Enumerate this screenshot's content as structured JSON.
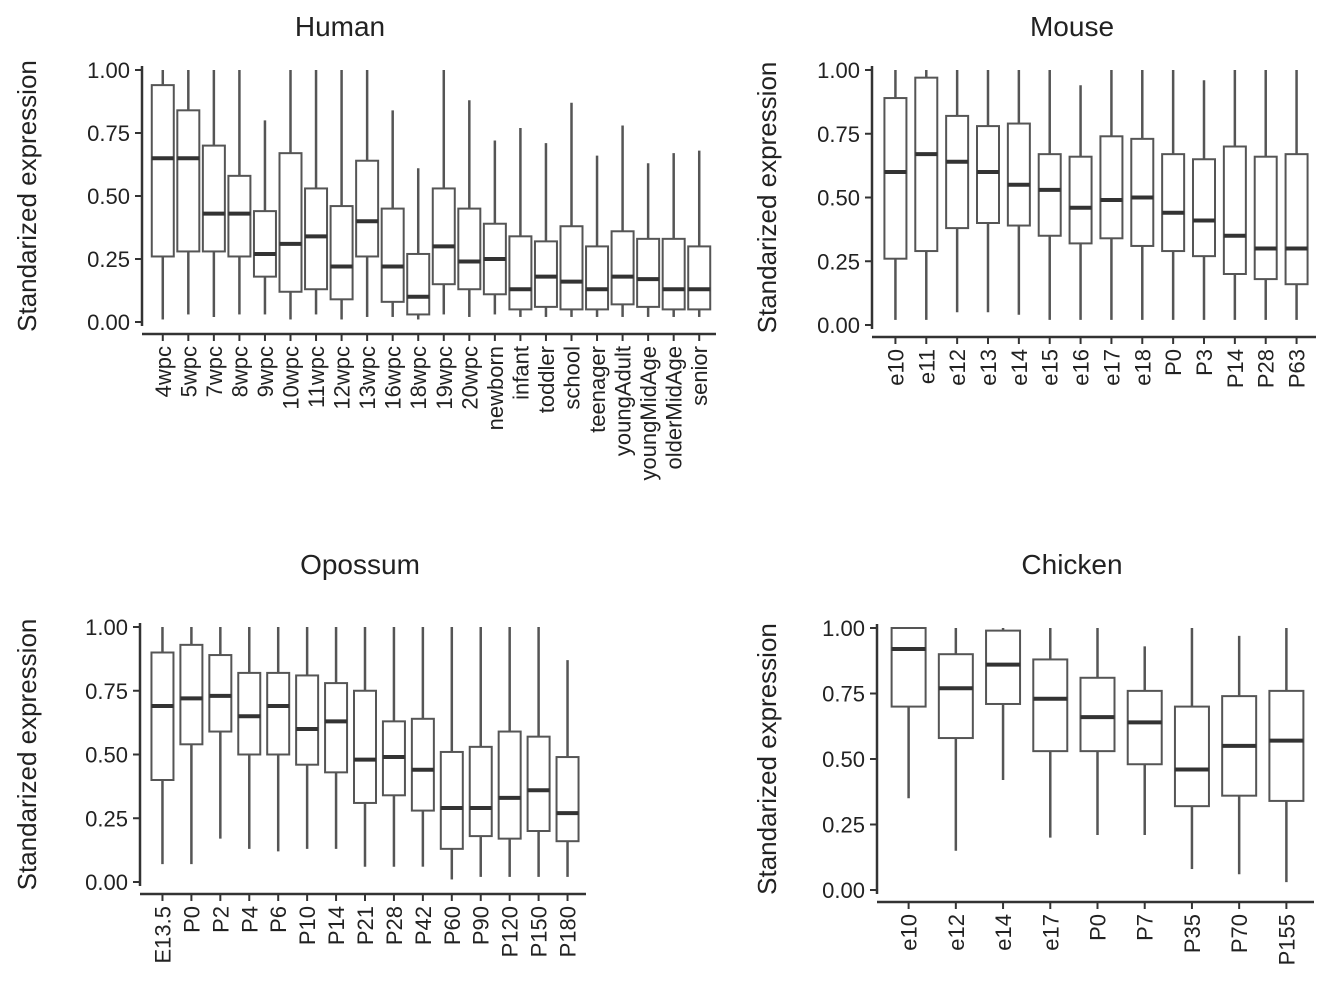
{
  "chart_data": [
    {
      "type": "boxplot",
      "title": "Human",
      "ylabel": "Standarized expression",
      "ylim": [
        0,
        1
      ],
      "yticks": [
        "0.00",
        "0.25",
        "0.50",
        "0.75",
        "1.00"
      ],
      "categories": [
        "4wpc",
        "5wpc",
        "7wpc",
        "8wpc",
        "9wpc",
        "10wpc",
        "11wpc",
        "12wpc",
        "13wpc",
        "16wpc",
        "18wpc",
        "19wpc",
        "20wpc",
        "newborn",
        "infant",
        "toddler",
        "school",
        "teenager",
        "youngAdult",
        "youngMidAge",
        "olderMidAge",
        "senior"
      ],
      "boxes": [
        {
          "min": 0.01,
          "q1": 0.26,
          "median": 0.65,
          "q3": 0.94,
          "max": 1.0
        },
        {
          "min": 0.03,
          "q1": 0.28,
          "median": 0.65,
          "q3": 0.84,
          "max": 1.0
        },
        {
          "min": 0.02,
          "q1": 0.28,
          "median": 0.43,
          "q3": 0.7,
          "max": 1.0
        },
        {
          "min": 0.03,
          "q1": 0.26,
          "median": 0.43,
          "q3": 0.58,
          "max": 1.0
        },
        {
          "min": 0.03,
          "q1": 0.18,
          "median": 0.27,
          "q3": 0.44,
          "max": 0.8
        },
        {
          "min": 0.01,
          "q1": 0.12,
          "median": 0.31,
          "q3": 0.67,
          "max": 1.0
        },
        {
          "min": 0.03,
          "q1": 0.13,
          "median": 0.34,
          "q3": 0.53,
          "max": 1.0
        },
        {
          "min": 0.01,
          "q1": 0.09,
          "median": 0.22,
          "q3": 0.46,
          "max": 1.0
        },
        {
          "min": 0.02,
          "q1": 0.26,
          "median": 0.4,
          "q3": 0.64,
          "max": 1.0
        },
        {
          "min": 0.02,
          "q1": 0.08,
          "median": 0.22,
          "q3": 0.45,
          "max": 0.84
        },
        {
          "min": 0.01,
          "q1": 0.03,
          "median": 0.1,
          "q3": 0.27,
          "max": 0.61
        },
        {
          "min": 0.03,
          "q1": 0.15,
          "median": 0.3,
          "q3": 0.53,
          "max": 1.0
        },
        {
          "min": 0.02,
          "q1": 0.13,
          "median": 0.24,
          "q3": 0.45,
          "max": 0.88
        },
        {
          "min": 0.03,
          "q1": 0.11,
          "median": 0.25,
          "q3": 0.39,
          "max": 0.72
        },
        {
          "min": 0.02,
          "q1": 0.05,
          "median": 0.13,
          "q3": 0.34,
          "max": 0.77
        },
        {
          "min": 0.02,
          "q1": 0.06,
          "median": 0.18,
          "q3": 0.32,
          "max": 0.71
        },
        {
          "min": 0.02,
          "q1": 0.05,
          "median": 0.16,
          "q3": 0.38,
          "max": 0.87
        },
        {
          "min": 0.02,
          "q1": 0.05,
          "median": 0.13,
          "q3": 0.3,
          "max": 0.66
        },
        {
          "min": 0.02,
          "q1": 0.07,
          "median": 0.18,
          "q3": 0.36,
          "max": 0.78
        },
        {
          "min": 0.02,
          "q1": 0.06,
          "median": 0.17,
          "q3": 0.33,
          "max": 0.63
        },
        {
          "min": 0.02,
          "q1": 0.05,
          "median": 0.13,
          "q3": 0.33,
          "max": 0.67
        },
        {
          "min": 0.02,
          "q1": 0.05,
          "median": 0.13,
          "q3": 0.3,
          "max": 0.68
        }
      ]
    },
    {
      "type": "boxplot",
      "title": "Mouse",
      "ylabel": "Standarized expression",
      "ylim": [
        0,
        1
      ],
      "yticks": [
        "0.00",
        "0.25",
        "0.50",
        "0.75",
        "1.00"
      ],
      "categories": [
        "e10",
        "e11",
        "e12",
        "e13",
        "e14",
        "e15",
        "e16",
        "e17",
        "e18",
        "P0",
        "P3",
        "P14",
        "P28",
        "P63"
      ],
      "boxes": [
        {
          "min": 0.02,
          "q1": 0.26,
          "median": 0.6,
          "q3": 0.89,
          "max": 1.0
        },
        {
          "min": 0.02,
          "q1": 0.29,
          "median": 0.67,
          "q3": 0.97,
          "max": 1.0
        },
        {
          "min": 0.05,
          "q1": 0.38,
          "median": 0.64,
          "q3": 0.82,
          "max": 1.0
        },
        {
          "min": 0.05,
          "q1": 0.4,
          "median": 0.6,
          "q3": 0.78,
          "max": 1.0
        },
        {
          "min": 0.04,
          "q1": 0.39,
          "median": 0.55,
          "q3": 0.79,
          "max": 1.0
        },
        {
          "min": 0.02,
          "q1": 0.35,
          "median": 0.53,
          "q3": 0.67,
          "max": 1.0
        },
        {
          "min": 0.02,
          "q1": 0.32,
          "median": 0.46,
          "q3": 0.66,
          "max": 0.94
        },
        {
          "min": 0.02,
          "q1": 0.34,
          "median": 0.49,
          "q3": 0.74,
          "max": 1.0
        },
        {
          "min": 0.02,
          "q1": 0.31,
          "median": 0.5,
          "q3": 0.73,
          "max": 1.0
        },
        {
          "min": 0.02,
          "q1": 0.29,
          "median": 0.44,
          "q3": 0.67,
          "max": 1.0
        },
        {
          "min": 0.02,
          "q1": 0.27,
          "median": 0.41,
          "q3": 0.65,
          "max": 0.96
        },
        {
          "min": 0.02,
          "q1": 0.2,
          "median": 0.35,
          "q3": 0.7,
          "max": 1.0
        },
        {
          "min": 0.02,
          "q1": 0.18,
          "median": 0.3,
          "q3": 0.66,
          "max": 1.0
        },
        {
          "min": 0.02,
          "q1": 0.16,
          "median": 0.3,
          "q3": 0.67,
          "max": 1.0
        }
      ]
    },
    {
      "type": "boxplot",
      "title": "Opossum",
      "ylabel": "Standarized expression",
      "ylim": [
        0,
        1
      ],
      "yticks": [
        "0.00",
        "0.25",
        "0.50",
        "0.75",
        "1.00"
      ],
      "categories": [
        "E13.5",
        "P0",
        "P2",
        "P4",
        "P6",
        "P10",
        "P14",
        "P21",
        "P28",
        "P42",
        "P60",
        "P90",
        "P120",
        "P150",
        "P180"
      ],
      "boxes": [
        {
          "min": 0.07,
          "q1": 0.4,
          "median": 0.69,
          "q3": 0.9,
          "max": 1.0
        },
        {
          "min": 0.07,
          "q1": 0.54,
          "median": 0.72,
          "q3": 0.93,
          "max": 1.0
        },
        {
          "min": 0.17,
          "q1": 0.59,
          "median": 0.73,
          "q3": 0.89,
          "max": 1.0
        },
        {
          "min": 0.13,
          "q1": 0.5,
          "median": 0.65,
          "q3": 0.82,
          "max": 1.0
        },
        {
          "min": 0.12,
          "q1": 0.5,
          "median": 0.69,
          "q3": 0.82,
          "max": 1.0
        },
        {
          "min": 0.13,
          "q1": 0.46,
          "median": 0.6,
          "q3": 0.81,
          "max": 1.0
        },
        {
          "min": 0.13,
          "q1": 0.43,
          "median": 0.63,
          "q3": 0.78,
          "max": 1.0
        },
        {
          "min": 0.06,
          "q1": 0.31,
          "median": 0.48,
          "q3": 0.75,
          "max": 1.0
        },
        {
          "min": 0.06,
          "q1": 0.34,
          "median": 0.49,
          "q3": 0.63,
          "max": 1.0
        },
        {
          "min": 0.06,
          "q1": 0.28,
          "median": 0.44,
          "q3": 0.64,
          "max": 1.0
        },
        {
          "min": 0.01,
          "q1": 0.13,
          "median": 0.29,
          "q3": 0.51,
          "max": 1.0
        },
        {
          "min": 0.02,
          "q1": 0.18,
          "median": 0.29,
          "q3": 0.53,
          "max": 1.0
        },
        {
          "min": 0.02,
          "q1": 0.17,
          "median": 0.33,
          "q3": 0.59,
          "max": 1.0
        },
        {
          "min": 0.02,
          "q1": 0.2,
          "median": 0.36,
          "q3": 0.57,
          "max": 1.0
        },
        {
          "min": 0.02,
          "q1": 0.16,
          "median": 0.27,
          "q3": 0.49,
          "max": 0.87
        }
      ]
    },
    {
      "type": "boxplot",
      "title": "Chicken",
      "ylabel": "Standarized expression",
      "ylim": [
        0,
        1
      ],
      "yticks": [
        "0.00",
        "0.25",
        "0.50",
        "0.75",
        "1.00"
      ],
      "categories": [
        "e10",
        "e12",
        "e14",
        "e17",
        "P0",
        "P7",
        "P35",
        "P70",
        "P155"
      ],
      "boxes": [
        {
          "min": 0.35,
          "q1": 0.7,
          "median": 0.92,
          "q3": 1.0,
          "max": 1.0
        },
        {
          "min": 0.15,
          "q1": 0.58,
          "median": 0.77,
          "q3": 0.9,
          "max": 1.0
        },
        {
          "min": 0.42,
          "q1": 0.71,
          "median": 0.86,
          "q3": 0.99,
          "max": 1.0
        },
        {
          "min": 0.2,
          "q1": 0.53,
          "median": 0.73,
          "q3": 0.88,
          "max": 1.0
        },
        {
          "min": 0.21,
          "q1": 0.53,
          "median": 0.66,
          "q3": 0.81,
          "max": 1.0
        },
        {
          "min": 0.21,
          "q1": 0.48,
          "median": 0.64,
          "q3": 0.76,
          "max": 0.93
        },
        {
          "min": 0.08,
          "q1": 0.32,
          "median": 0.46,
          "q3": 0.7,
          "max": 1.0
        },
        {
          "min": 0.06,
          "q1": 0.36,
          "median": 0.55,
          "q3": 0.74,
          "max": 0.97
        },
        {
          "min": 0.03,
          "q1": 0.34,
          "median": 0.57,
          "q3": 0.76,
          "max": 1.0
        }
      ]
    }
  ]
}
